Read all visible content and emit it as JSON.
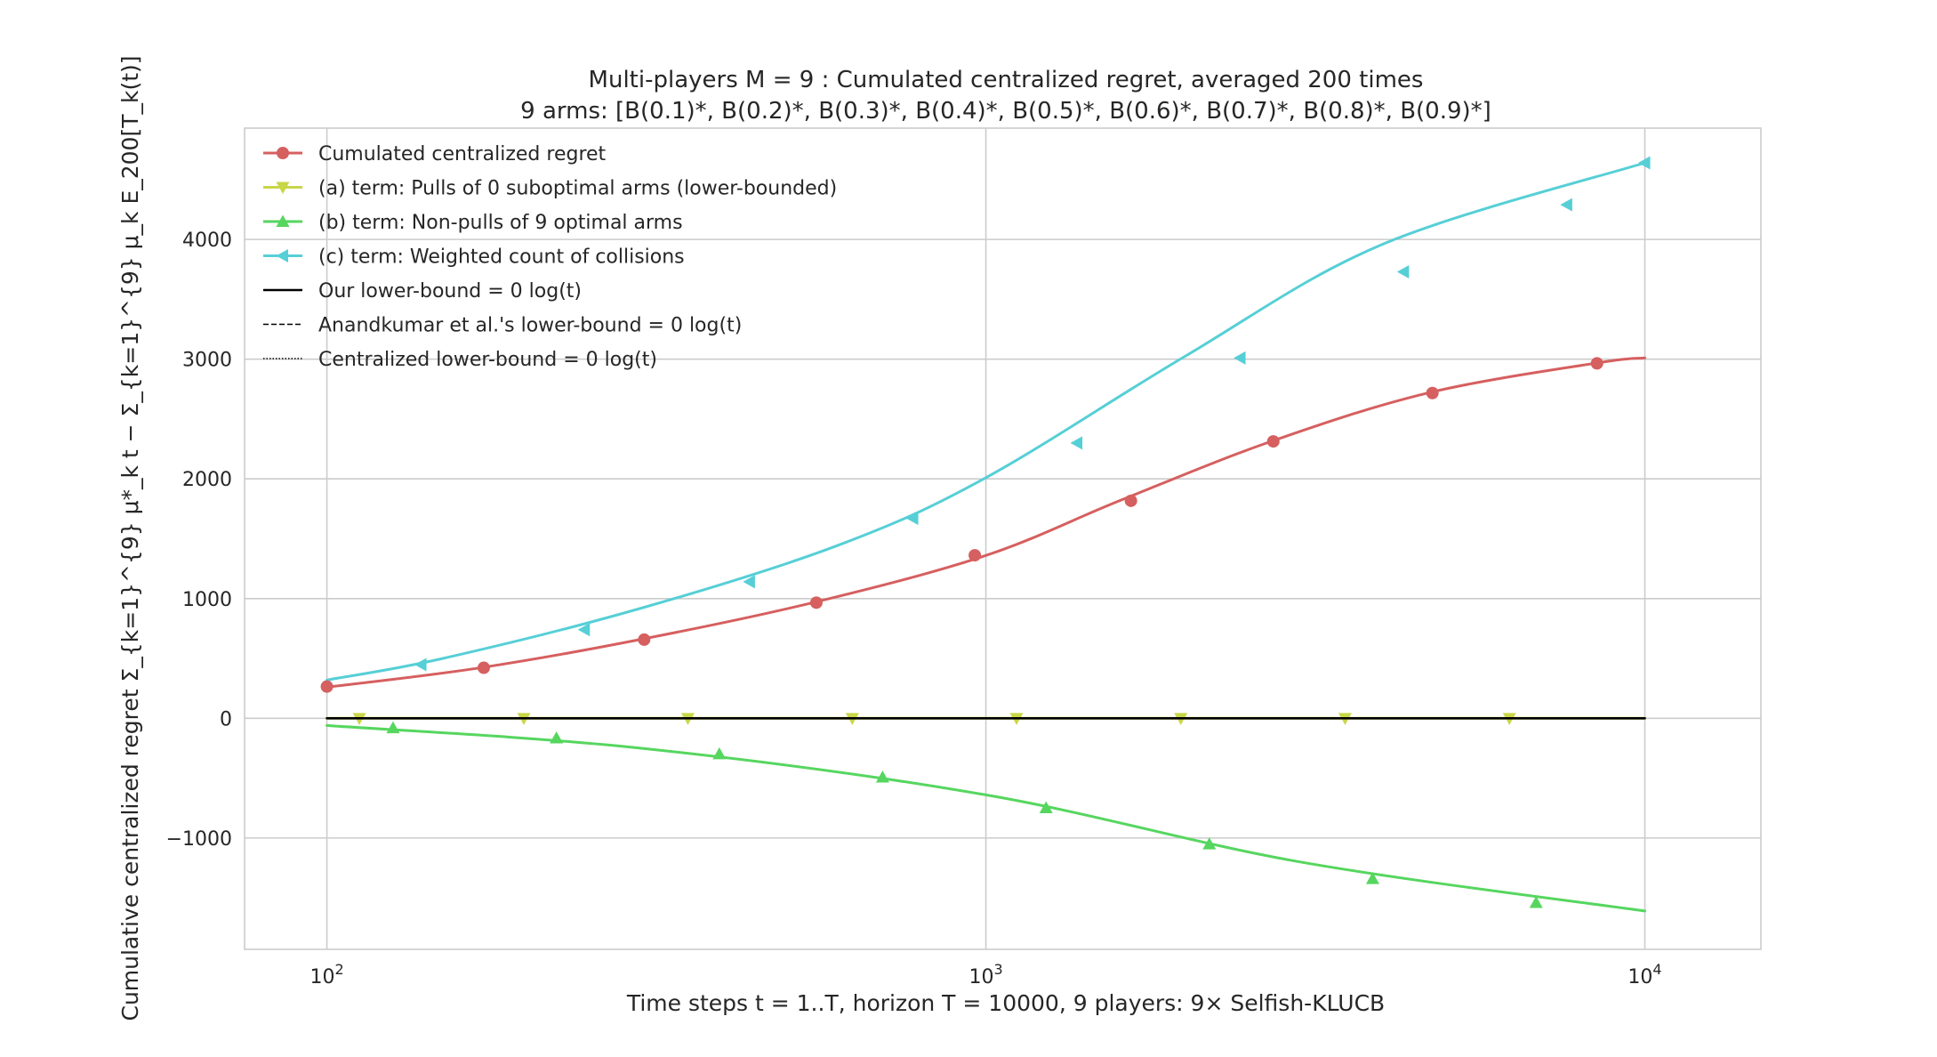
{
  "chart_data": {
    "type": "line",
    "title": "Multi-players M = 9 : Cumulated centralized regret, averaged 200 times",
    "subtitle": "9 arms: [B(0.1)*, B(0.2)*, B(0.3)*, B(0.4)*, B(0.5)*, B(0.6)*, B(0.7)*, B(0.8)*, B(0.9)*]",
    "xlabel": "Time steps t = 1..T, horizon T = 10000, 9 players: 9× Selfish-KLUCB",
    "ylabel": "Cumulative centralized regret Σ_{k=1}^{9} μ*_k t − Σ_{k=1}^{9} μ_k E_200[T_k(t)]",
    "x_scale": "log",
    "xlim": [
      75,
      15000
    ],
    "ylim": [
      -1930,
      4930
    ],
    "x_ticks": [
      {
        "value": 100,
        "base": "10",
        "exp": "2"
      },
      {
        "value": 1000,
        "base": "10",
        "exp": "3"
      },
      {
        "value": 10000,
        "base": "10",
        "exp": "4"
      }
    ],
    "y_ticks": [
      {
        "value": -1000,
        "label": "−1000"
      },
      {
        "value": 0,
        "label": "0"
      },
      {
        "value": 1000,
        "label": "1000"
      },
      {
        "value": 2000,
        "label": "2000"
      },
      {
        "value": 3000,
        "label": "3000"
      },
      {
        "value": 4000,
        "label": "4000"
      }
    ],
    "grid": true,
    "legend_position": "top-left",
    "series": [
      {
        "name": "Cumulated centralized regret",
        "color": "#d65f5f",
        "marker": "circle",
        "line": "solid",
        "x": [
          100,
          170,
          300,
          550,
          1000,
          1600,
          2700,
          4700,
          8500,
          10000
        ],
        "y": [
          260,
          420,
          660,
          970,
          1360,
          1820,
          2310,
          2720,
          2970,
          3010
        ],
        "marker_x": [
          100,
          173,
          303,
          553,
          962,
          1660,
          2730,
          4760,
          8460
        ],
        "marker_y": [
          265,
          422,
          657,
          966,
          1362,
          1817,
          2313,
          2717,
          2965
        ]
      },
      {
        "name": "(a) term: Pulls of 0 suboptimal arms (lower-bounded)",
        "color": "#c8d648",
        "marker": "triangle-down",
        "line": "solid",
        "x": [
          100,
          10000
        ],
        "y": [
          0,
          0
        ],
        "marker_x": [
          112,
          199,
          353,
          627,
          1113,
          1976,
          3508,
          6229
        ],
        "marker_y": [
          0,
          0,
          0,
          0,
          0,
          0,
          0,
          0
        ]
      },
      {
        "name": "(b) term: Non-pulls of 9 optimal arms",
        "color": "#56d65f",
        "marker": "triangle-up",
        "line": "solid",
        "x": [
          100,
          300,
          1000,
          3000,
          10000
        ],
        "y": [
          -60,
          -250,
          -640,
          -1200,
          -1610
        ],
        "marker_x": [
          126,
          223,
          394,
          697,
          1234,
          2183,
          3863,
          6838
        ],
        "marker_y": [
          -80,
          -165,
          -298,
          -492,
          -748,
          -1050,
          -1340,
          -1540
        ]
      },
      {
        "name": "(c) term: Weighted count of collisions",
        "color": "#56cfd6",
        "marker": "triangle-left",
        "line": "solid",
        "x": [
          100,
          150,
          300,
          600,
          1000,
          2000,
          4000,
          10000
        ],
        "y": [
          320,
          500,
          920,
          1450,
          2010,
          3020,
          3960,
          4640
        ],
        "marker_x": [
          139,
          246,
          438,
          775,
          1375,
          2432,
          4305,
          7616,
          10000
        ],
        "marker_y": [
          448,
          740,
          1140,
          1670,
          2300,
          3010,
          3730,
          4290,
          4640
        ]
      },
      {
        "name": "Our lower-bound = 0 log(t)",
        "color": "#000000",
        "marker": "none",
        "line": "solid",
        "x": [
          100,
          10000
        ],
        "y": [
          0,
          0
        ]
      },
      {
        "name": "Anandkumar et al.'s lower-bound = 0 log(t)",
        "color": "#000000",
        "marker": "none",
        "line": "dashed",
        "x": [
          100,
          10000
        ],
        "y": [
          0,
          0
        ]
      },
      {
        "name": "Centralized lower-bound = 0 log(t)",
        "color": "#000000",
        "marker": "none",
        "line": "dotted",
        "x": [
          100,
          10000
        ],
        "y": [
          0,
          0
        ]
      }
    ]
  }
}
